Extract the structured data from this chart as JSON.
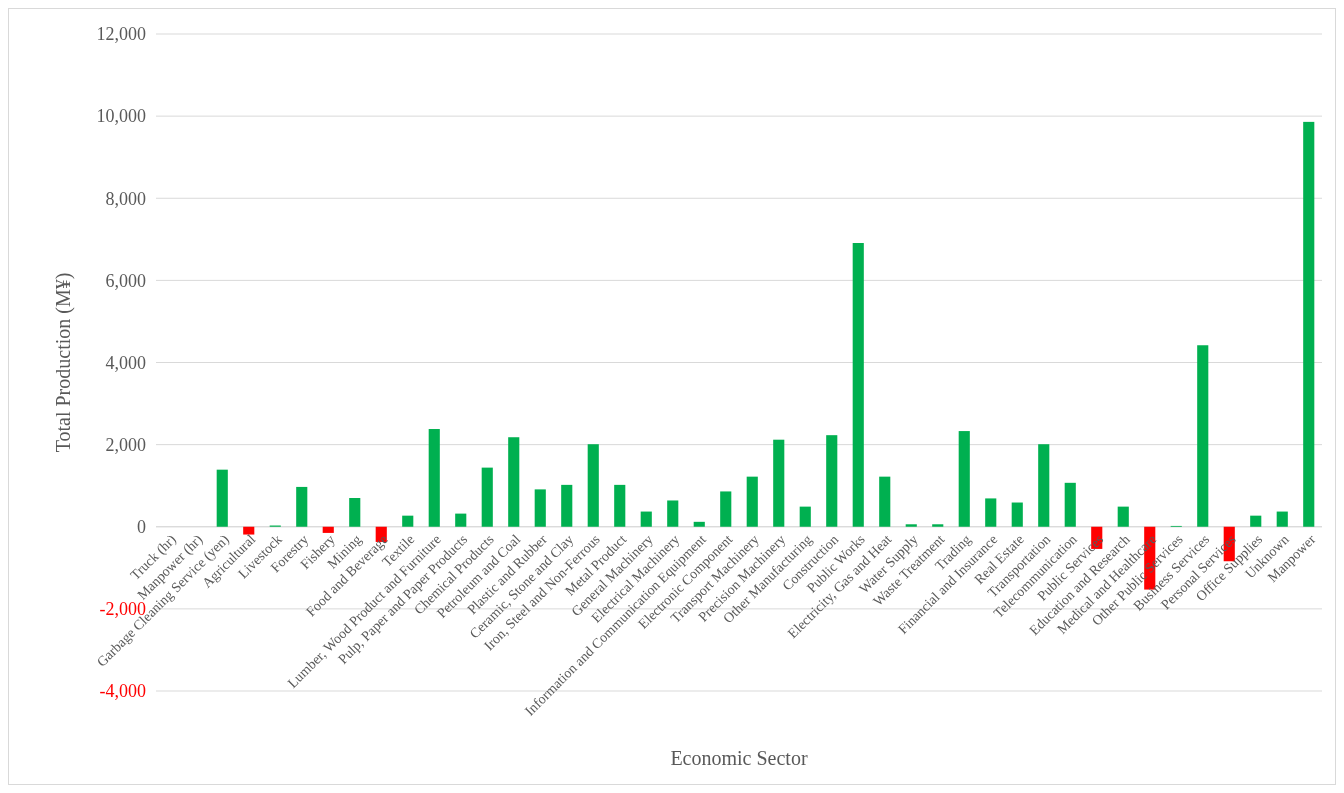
{
  "chart_data": {
    "type": "bar",
    "xlabel": "Economic Sector",
    "ylabel": "Total Production (M¥)",
    "categories": [
      "Truck (hr)",
      "Manpower (hr)",
      "Garbage Cleaning Service (yen)",
      "Agricultural",
      "Livestock",
      "Forestry",
      "Fishery",
      "Mining",
      "Food and Beverage",
      "Textile",
      "Lumber, Wood Product and Furniture",
      "Pulp, Paper and Paper Products",
      "Chemical Products",
      "Petroleum and Coal",
      "Plastic and Rubber",
      "Ceramic, Stone and Clay",
      "Iron, Steel and Non-Ferrous",
      "Metal Product",
      "General Machinery",
      "Electrical Machinery",
      "Information and Communication Equipment",
      "Electronic Component",
      "Transport Machinery",
      "Precision Machinery",
      "Other Manufacturing",
      "Construction",
      "Public Works",
      "Electricity, Gas and Heat",
      "Water Supply",
      "Waste Treatment",
      "Trading",
      "Financial and Insurance",
      "Real Estate",
      "Transportation",
      "Telecommunication",
      "Public Services",
      "Education and Research",
      "Medical and Healthcare",
      "Other Public Services",
      "Business Services",
      "Personal Services",
      "Office Supplies",
      "Unknown",
      "Manpower"
    ],
    "values": [
      0,
      0,
      1390,
      -190,
      30,
      970,
      -150,
      700,
      -370,
      270,
      2380,
      320,
      1440,
      2180,
      910,
      1020,
      2010,
      1020,
      370,
      640,
      120,
      860,
      1220,
      2120,
      490,
      2230,
      6910,
      1220,
      60,
      60,
      2330,
      690,
      590,
      2010,
      1070,
      -540,
      490,
      -1530,
      20,
      4420,
      -840,
      270,
      370,
      9860
    ],
    "colors": [
      "#00b050",
      "#00b050",
      "#00b050",
      "#ff0000",
      "#00b050",
      "#00b050",
      "#ff0000",
      "#00b050",
      "#ff0000",
      "#00b050",
      "#00b050",
      "#00b050",
      "#00b050",
      "#00b050",
      "#00b050",
      "#00b050",
      "#00b050",
      "#00b050",
      "#00b050",
      "#00b050",
      "#00b050",
      "#00b050",
      "#00b050",
      "#00b050",
      "#00b050",
      "#00b050",
      "#00b050",
      "#00b050",
      "#00b050",
      "#00b050",
      "#00b050",
      "#00b050",
      "#00b050",
      "#00b050",
      "#00b050",
      "#ff0000",
      "#00b050",
      "#ff0000",
      "#00b050",
      "#00b050",
      "#ff0000",
      "#00b050",
      "#00b050",
      "#00b050"
    ],
    "ylim": [
      -4000,
      12000
    ],
    "yticks": [
      {
        "value": -4000,
        "label": "-4,000"
      },
      {
        "value": -2000,
        "label": "-2,000"
      },
      {
        "value": 0,
        "label": "0"
      },
      {
        "value": 2000,
        "label": "2,000"
      },
      {
        "value": 4000,
        "label": "4,000"
      },
      {
        "value": 6000,
        "label": "6,000"
      },
      {
        "value": 8000,
        "label": "8,000"
      },
      {
        "value": 10000,
        "label": "10,000"
      },
      {
        "value": 12000,
        "label": "12,000"
      }
    ],
    "grid": true
  }
}
